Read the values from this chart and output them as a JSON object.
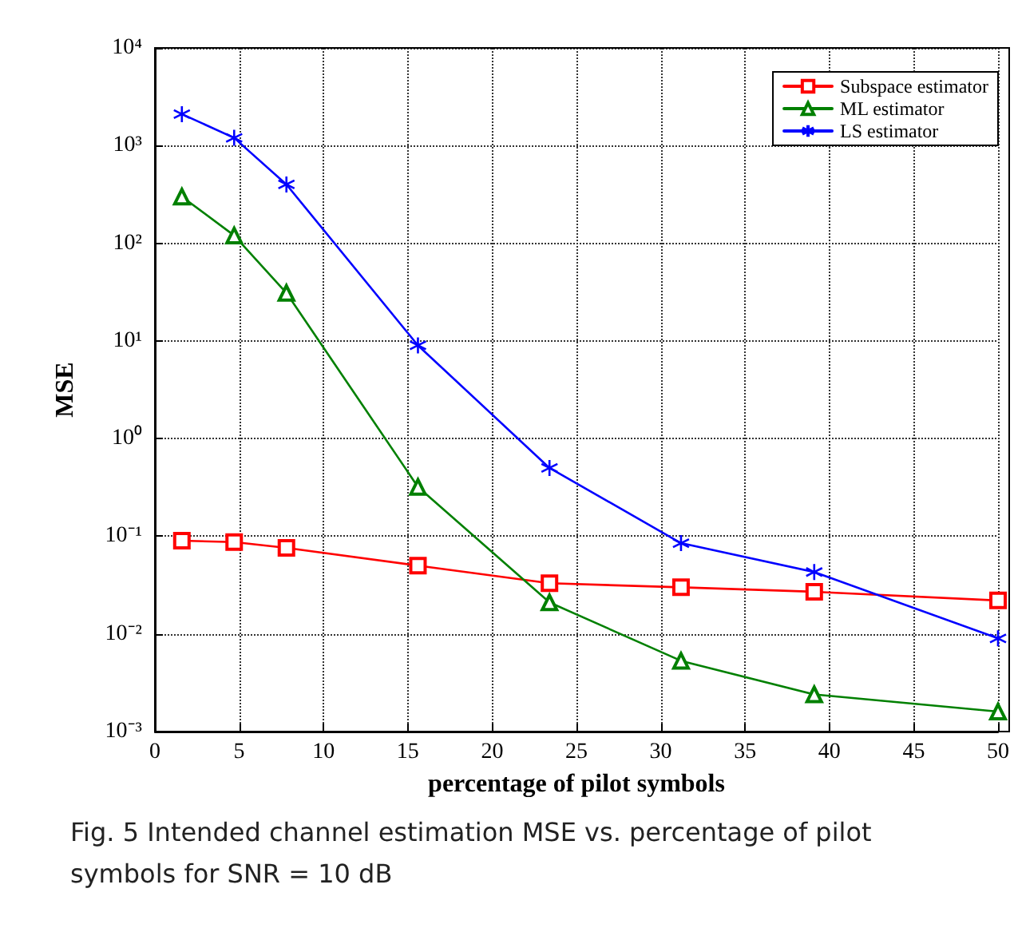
{
  "chart_data": {
    "type": "line",
    "xlabel": "percentage of pilot symbols",
    "ylabel": "MSE",
    "annotations": [
      "Fig. 5 Intended channel estimation MSE vs. percentage of pilot symbols for SNR = 10 dB"
    ],
    "x": [
      1.6,
      4.7,
      7.8,
      15.6,
      23.4,
      31.2,
      39.1,
      50
    ],
    "series": [
      {
        "name": "Subspace estimator",
        "color": "#ff0000",
        "marker": "square",
        "values": [
          0.09,
          0.087,
          0.076,
          0.05,
          0.033,
          0.03,
          0.027,
          0.022
        ]
      },
      {
        "name": "ML estimator",
        "color": "#008000",
        "marker": "triangle",
        "values": [
          300,
          120,
          31,
          0.32,
          0.021,
          0.0053,
          0.0024,
          0.0016
        ]
      },
      {
        "name": "LS estimator",
        "color": "#0000ff",
        "marker": "cross",
        "values": [
          2100,
          1200,
          400,
          9,
          0.5,
          0.085,
          0.043,
          0.009
        ]
      }
    ],
    "xlim": [
      0,
      50
    ],
    "xticks": [
      0,
      5,
      10,
      15,
      20,
      25,
      30,
      35,
      40,
      45,
      50
    ],
    "ylim": [
      0.001,
      10000
    ],
    "yticks": [
      {
        "value": 0.001,
        "label": "10⁻³"
      },
      {
        "value": 0.01,
        "label": "10⁻²"
      },
      {
        "value": 0.1,
        "label": "10⁻¹"
      },
      {
        "value": 1,
        "label": "10⁰"
      },
      {
        "value": 10,
        "label": "10¹"
      },
      {
        "value": 100,
        "label": "10²"
      },
      {
        "value": 1000,
        "label": "10³"
      },
      {
        "value": 10000,
        "label": "10⁴"
      }
    ],
    "log": true,
    "grid": true,
    "legend": "top right",
    "line_style": "solid"
  }
}
